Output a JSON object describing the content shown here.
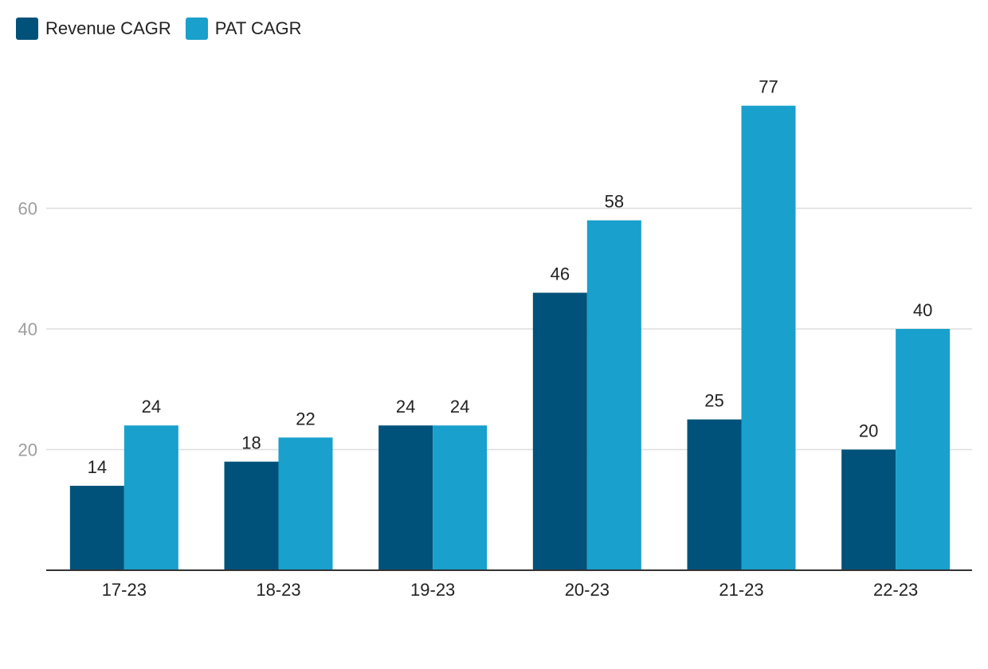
{
  "chart_data": {
    "type": "bar",
    "categories": [
      "17-23",
      "18-23",
      "19-23",
      "20-23",
      "21-23",
      "22-23"
    ],
    "series": [
      {
        "name": "Revenue CAGR",
        "color": "#00527a",
        "values": [
          14,
          18,
          24,
          46,
          25,
          20
        ]
      },
      {
        "name": "PAT CAGR",
        "color": "#19a0cc",
        "values": [
          24,
          22,
          24,
          58,
          77,
          40
        ]
      }
    ],
    "yticks": [
      20,
      40,
      60
    ],
    "ylim": [
      0,
      80
    ],
    "grid": true,
    "legend_position": "top-left",
    "data_labels": true
  }
}
